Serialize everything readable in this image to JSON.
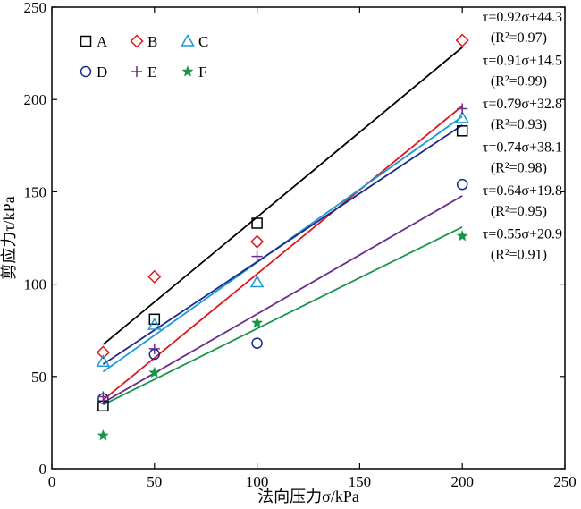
{
  "chart_data": {
    "type": "scatter",
    "xlabel": "法向压力σ/kPa",
    "ylabel": "剪应力τ/kPa",
    "xlim": [
      0,
      250
    ],
    "ylim": [
      0,
      250
    ],
    "x_ticks": [
      "0",
      "50",
      "100",
      "150",
      "200",
      "250"
    ],
    "y_ticks": [
      "0",
      "50",
      "100",
      "150",
      "200",
      "250"
    ],
    "grid": false,
    "legend_position": "top-left",
    "series": [
      {
        "name": "A",
        "color": "#000000",
        "marker": "square",
        "x": [
          25,
          50,
          100,
          200
        ],
        "y": [
          34,
          81,
          133,
          183
        ],
        "fit": {
          "slope": 0.92,
          "intercept": 44.3,
          "x_range": [
            25,
            200
          ],
          "equation": "τ=0.92σ+44.3",
          "r2": "(R²=0.97)"
        }
      },
      {
        "name": "B",
        "color": "#e0161a",
        "marker": "diamond",
        "x": [
          25,
          50,
          100,
          200
        ],
        "y": [
          63,
          104,
          123,
          232
        ],
        "fit": {
          "slope": 0.91,
          "intercept": 14.5,
          "x_range": [
            25,
            200
          ],
          "equation": "τ=0.91σ+14.5",
          "r2": "(R²=0.99)"
        }
      },
      {
        "name": "C",
        "color": "#1a9ad6",
        "marker": "triangle",
        "x": [
          25,
          50,
          100,
          200
        ],
        "y": [
          58,
          78,
          101,
          190
        ],
        "fit": {
          "slope": 0.79,
          "intercept": 32.8,
          "x_range": [
            25,
            200
          ],
          "equation": "τ=0.79σ+32.8",
          "r2": "(R²=0.93)"
        }
      },
      {
        "name": "D",
        "color": "#1b2a8a",
        "marker": "circle",
        "x": [
          25,
          50,
          100,
          200
        ],
        "y": [
          38,
          62,
          68,
          154
        ],
        "fit": {
          "slope": 0.74,
          "intercept": 38.1,
          "x_range": [
            25,
            200
          ],
          "equation": "τ=0.74σ+38.1",
          "r2": "(R²=0.98)"
        }
      },
      {
        "name": "E",
        "color": "#6a2c8e",
        "marker": "plus",
        "x": [
          25,
          50,
          100,
          200
        ],
        "y": [
          39,
          65,
          115,
          195
        ],
        "fit": {
          "slope": 0.64,
          "intercept": 19.8,
          "x_range": [
            25,
            200
          ],
          "equation": "τ=0.64σ+19.8",
          "r2": "(R²=0.95)"
        }
      },
      {
        "name": "F",
        "color": "#17964a",
        "marker": "star",
        "x": [
          25,
          50,
          100,
          200
        ],
        "y": [
          18,
          52,
          79,
          126
        ],
        "fit": {
          "slope": 0.55,
          "intercept": 20.9,
          "x_range": [
            25,
            200
          ],
          "equation": "τ=0.55σ+20.9",
          "r2": "(R²=0.91)"
        }
      }
    ]
  }
}
